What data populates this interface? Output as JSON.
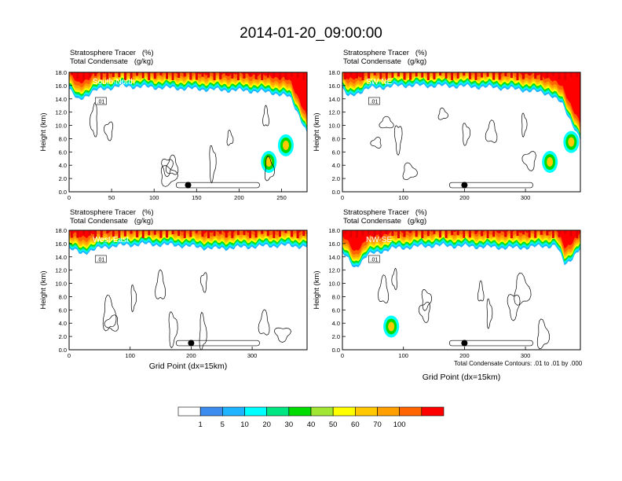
{
  "figure": {
    "title": "2014-01-20_09:00:00",
    "footer_note": "Total Condensate Contours: .01 to .01 by .000"
  },
  "panel_labels": {
    "line1": "Stratosphere Tracer   (%)",
    "line2": "Total Condensate   (g/kg)"
  },
  "colorbar": {
    "colors": [
      "#ffffff",
      "#3c8cf0",
      "#1eb4ff",
      "#00ffff",
      "#00e682",
      "#00dc00",
      "#a0e632",
      "#ffff00",
      "#ffc800",
      "#ffa000",
      "#ff6400",
      "#ff0000"
    ],
    "labels": [
      "1",
      "5",
      "10",
      "20",
      "30",
      "40",
      "50",
      "60",
      "70",
      "100"
    ]
  },
  "chart_data": [
    {
      "type": "heatmap",
      "title": "South-North",
      "ylabel": "Height (km)",
      "xlabel": "",
      "ylim": [
        0,
        18
      ],
      "xlim": [
        0,
        280
      ],
      "xticks": [
        0,
        50,
        100,
        150,
        200,
        250
      ],
      "yticks": [
        "0.0",
        "2.0",
        "4.0",
        "6.0",
        "8.0",
        "10.0",
        "12.0",
        "14.0",
        "16.0",
        "18.0"
      ],
      "tropopause_km": [
        15.8,
        14.0,
        15.5,
        16.2,
        16.0,
        15.8,
        15.6,
        15.5,
        15.2,
        14.5,
        12.0,
        9.0
      ],
      "tropopause_x": [
        0,
        10,
        30,
        60,
        100,
        140,
        180,
        210,
        240,
        260,
        270,
        280
      ],
      "intrusion": [
        {
          "x": 235,
          "y": 4.5
        },
        {
          "x": 255,
          "y": 7.0
        }
      ],
      "contour_label": ".01",
      "marker_x": 140,
      "marker_y": 1.0
    },
    {
      "type": "heatmap",
      "title": "SW-NE",
      "ylabel": "Height (km)",
      "xlabel": "",
      "ylim": [
        0,
        18
      ],
      "xlim": [
        0,
        390
      ],
      "xticks": [
        0,
        100,
        200,
        300
      ],
      "yticks": [
        "0.0",
        "2.0",
        "4.0",
        "6.0",
        "8.0",
        "10.0",
        "12.0",
        "14.0",
        "16.0",
        "18.0"
      ],
      "tropopause_km": [
        15.8,
        14.5,
        15.8,
        16.3,
        16.2,
        16.0,
        15.6,
        15.0,
        13.5,
        10.0,
        8.0
      ],
      "tropopause_x": [
        0,
        10,
        40,
        100,
        180,
        250,
        300,
        340,
        360,
        380,
        390
      ],
      "intrusion": [
        {
          "x": 340,
          "y": 4.5
        },
        {
          "x": 375,
          "y": 7.5
        }
      ],
      "contour_label": ".01",
      "marker_x": 200,
      "marker_y": 1.0
    },
    {
      "type": "heatmap",
      "title": "West-East",
      "ylabel": "Height (km)",
      "xlabel": "Grid Point (dx=15km)",
      "ylim": [
        0,
        18
      ],
      "xlim": [
        0,
        390
      ],
      "xticks": [
        0,
        100,
        200,
        300
      ],
      "yticks": [
        "0.0",
        "2.0",
        "4.0",
        "6.0",
        "8.0",
        "10.0",
        "12.0",
        "14.0",
        "16.0",
        "18.0"
      ],
      "tropopause_km": [
        15.5,
        14.8,
        15.8,
        16.2,
        16.0,
        15.5,
        15.8,
        16.0,
        15.8
      ],
      "tropopause_x": [
        0,
        20,
        60,
        120,
        180,
        240,
        300,
        350,
        390
      ],
      "intrusion": [],
      "contour_label": ".01",
      "marker_x": 200,
      "marker_y": 1.0
    },
    {
      "type": "heatmap",
      "title": "NW-SE",
      "ylabel": "Height (km)",
      "xlabel": "Grid Point (dx=15km)",
      "ylim": [
        0,
        18
      ],
      "xlim": [
        0,
        390
      ],
      "xticks": [
        0,
        100,
        200,
        300
      ],
      "yticks": [
        "0.0",
        "2.0",
        "4.0",
        "6.0",
        "8.0",
        "10.0",
        "12.0",
        "14.0",
        "16.0",
        "18.0"
      ],
      "tropopause_km": [
        15.0,
        12.5,
        14.5,
        15.5,
        16.0,
        15.8,
        15.6,
        15.8,
        16.0,
        13.0,
        15.5
      ],
      "tropopause_x": [
        0,
        20,
        40,
        80,
        150,
        220,
        280,
        320,
        350,
        365,
        390
      ],
      "intrusion": [
        {
          "x": 80,
          "y": 3.5
        }
      ],
      "contour_label": ".01",
      "marker_x": 200,
      "marker_y": 1.0
    }
  ]
}
